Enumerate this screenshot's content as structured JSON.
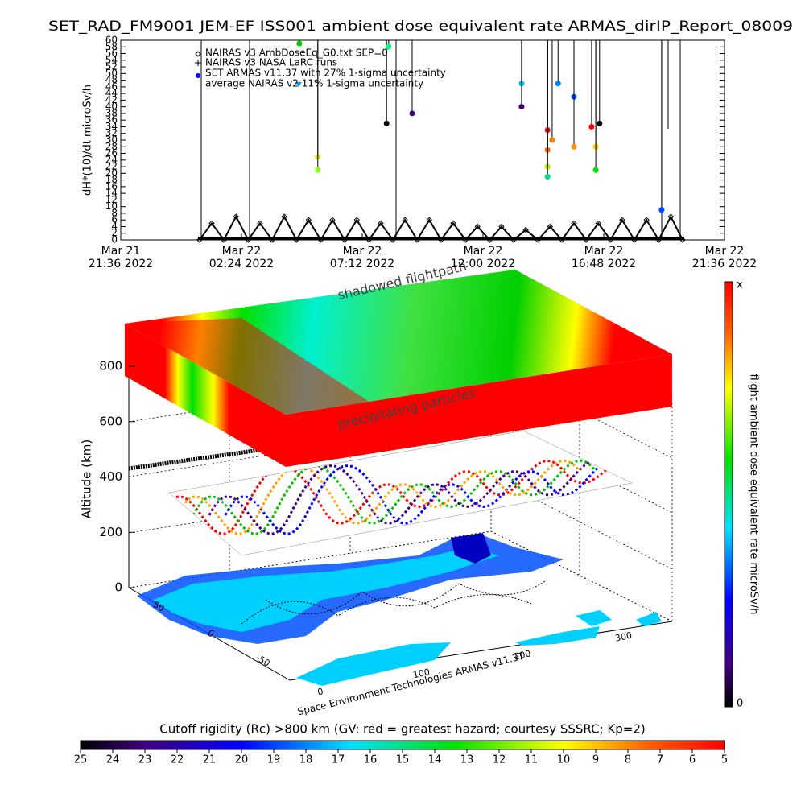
{
  "chart_data": [
    {
      "type": "line",
      "title": "SET_RAD_FM9001  JEM-EF ISS001 ambient dose equivalent rate ARMAS_dirIP_Report_08009",
      "ylabel": "dH*(10)/dt microSv/h",
      "xlim": [
        "2022-03-21 21:36",
        "2022-03-22 21:36"
      ],
      "xticks": [
        {
          "value": "2022-03-21 21:36",
          "label": "Mar 21\n21:36 2022"
        },
        {
          "value": "2022-03-22 02:24",
          "label": "Mar 22\n02:24 2022"
        },
        {
          "value": "2022-03-22 07:12",
          "label": "Mar 22\n07:12 2022"
        },
        {
          "value": "2022-03-22 12:00",
          "label": "Mar 22\n12:00 2022"
        },
        {
          "value": "2022-03-22 16:48",
          "label": "Mar 22\n16:48 2022"
        },
        {
          "value": "2022-03-22 21:36",
          "label": "Mar 22\n21:36 2022"
        }
      ],
      "ylim": [
        0,
        60
      ],
      "yticks": [
        0,
        2,
        4,
        6,
        8,
        10,
        12,
        14,
        16,
        18,
        20,
        22,
        24,
        26,
        28,
        30,
        32,
        34,
        36,
        38,
        40,
        42,
        44,
        46,
        48,
        50,
        52,
        54,
        56,
        58,
        60
      ],
      "legend": [
        "NAIRAS v3 AmbDoseEq_G0.txt SEP=0",
        "NAIRAS v3 NASA LaRC runs",
        "SET ARMAS v11.37 with 27% 1-sigma uncertainty",
        "average NAIRAS v2 11% 1-sigma uncertainty"
      ],
      "series": [
        {
          "marker": "diamond",
          "color": "#000000",
          "x": [
            "2022-03-22 00:44",
            "2022-03-22 01:13",
            "2022-03-22 01:42",
            "2022-03-22 02:11",
            "2022-03-22 02:40",
            "2022-03-22 03:08",
            "2022-03-22 03:37",
            "2022-03-22 04:06",
            "2022-03-22 04:35",
            "2022-03-22 05:04",
            "2022-03-22 05:33",
            "2022-03-22 06:01",
            "2022-03-22 06:30",
            "2022-03-22 06:59",
            "2022-03-22 07:28",
            "2022-03-22 07:56",
            "2022-03-22 08:25",
            "2022-03-22 08:54",
            "2022-03-22 09:23",
            "2022-03-22 09:52",
            "2022-03-22 10:20",
            "2022-03-22 10:49",
            "2022-03-22 11:18",
            "2022-03-22 11:47",
            "2022-03-22 12:16",
            "2022-03-22 12:44",
            "2022-03-22 13:13",
            "2022-03-22 13:42",
            "2022-03-22 14:11",
            "2022-03-22 14:40",
            "2022-03-22 15:08",
            "2022-03-22 15:37",
            "2022-03-22 16:06",
            "2022-03-22 16:35",
            "2022-03-22 17:04",
            "2022-03-22 17:32",
            "2022-03-22 18:01",
            "2022-03-22 18:30",
            "2022-03-22 18:59",
            "2022-03-22 19:28",
            "2022-03-22 19:56"
          ],
          "values": [
            0,
            5,
            0,
            7,
            0,
            5,
            0,
            7,
            0,
            6,
            0,
            6,
            0,
            6,
            0,
            5,
            0,
            6,
            0,
            6,
            0,
            5,
            0,
            4,
            0,
            4,
            0,
            3,
            0,
            4,
            0,
            5,
            0,
            5,
            0,
            6,
            0,
            6,
            0,
            7,
            0
          ]
        },
        {
          "marker": "circle",
          "x": [
            "2022-03-22 04:42",
            "2022-03-22 05:26",
            "2022-03-22 05:26",
            "2022-03-22 08:10",
            "2022-03-22 08:15",
            "2022-03-22 09:11",
            "2022-03-22 13:32",
            "2022-03-22 13:32",
            "2022-03-22 14:34",
            "2022-03-22 14:34",
            "2022-03-22 14:34",
            "2022-03-22 14:34",
            "2022-03-22 14:45",
            "2022-03-22 14:59",
            "2022-03-22 15:37",
            "2022-03-22 15:37",
            "2022-03-22 16:19",
            "2022-03-22 16:29",
            "2022-03-22 16:29",
            "2022-03-22 16:38",
            "2022-03-22 19:06"
          ],
          "values": [
            59,
            25,
            21,
            35,
            58,
            38,
            47,
            40,
            33,
            27,
            22,
            19,
            30,
            47,
            43,
            28,
            34,
            28,
            21,
            35,
            9
          ],
          "colors": [
            "#00c000",
            "#e0e000",
            "#80ff00",
            "#000000",
            "#00ff80",
            "#400080",
            "#00c0ff",
            "#400080",
            "#ff0000",
            "#ff6000",
            "#c0e000",
            "#00e080",
            "#ff8000",
            "#0080ff",
            "#0050ff",
            "#ff9000",
            "#ff0000",
            "#ffd000",
            "#00e000",
            "#000000",
            "#0040ff"
          ]
        }
      ]
    },
    {
      "type": "surface3d",
      "zlabel": "Altitude (km)",
      "zlim": [
        0,
        800
      ],
      "zticks": [
        0,
        200,
        400,
        600,
        800
      ],
      "ylim": [
        -90,
        90
      ],
      "yticks": [
        -50,
        0,
        50
      ],
      "xlim": [
        0,
        360
      ],
      "xticks": [
        0,
        100,
        200,
        300
      ],
      "annotations": [
        "shadowed flightpath",
        "precipitating particles"
      ],
      "footer": "Space Environment Technologies ARMAS v11.37"
    },
    {
      "type": "colorbar-vertical",
      "label": "flight ambient dose equivalent rate microSv/h",
      "min": 0,
      "max_label": "x"
    },
    {
      "type": "colorbar-horizontal",
      "title": "Cutoff rigidity (Rc) >800 km (GV: red = greatest hazard; courtesy SSSRC; Kp=2)",
      "xlim": [
        25,
        5
      ],
      "xticks": [
        25,
        24,
        23,
        22,
        21,
        20,
        19,
        18,
        17,
        16,
        15,
        14,
        13,
        12,
        11,
        10,
        9,
        8,
        7,
        6,
        5
      ]
    }
  ]
}
